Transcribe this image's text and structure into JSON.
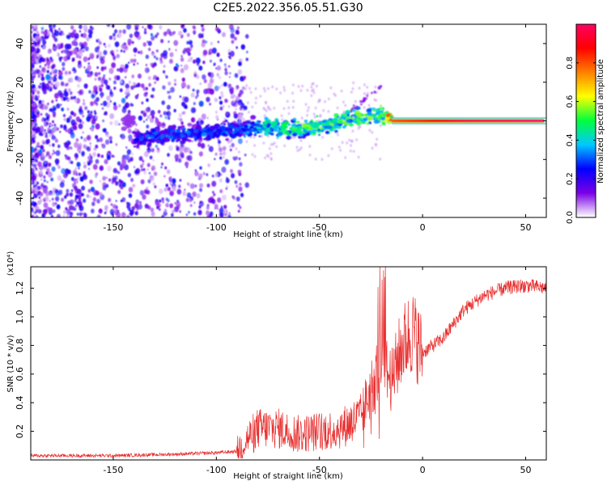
{
  "figure": {
    "title": "C2E5.2022.356.05.51.G30"
  },
  "chart_data": [
    {
      "type": "heatmap",
      "xlabel": "Height of straight line (km)",
      "ylabel": "Frequency (Hz)",
      "xlim": [
        -190,
        60
      ],
      "ylim": [
        -50,
        50
      ],
      "xticks": [
        -150,
        -100,
        -50,
        0,
        50
      ],
      "yticks": [
        -40,
        -20,
        0,
        20,
        40
      ],
      "colorbar": {
        "label": "Normalized spectral amplitude",
        "range": [
          0,
          1
        ],
        "ticks": [
          0.0,
          0.2,
          0.4,
          0.6,
          0.8
        ],
        "colors": [
          "#ffffff",
          "#7a00e6",
          "#0000ff",
          "#00c8ff",
          "#00ff3c",
          "#ffff00",
          "#ff8000",
          "#ff0000",
          "#ff0066"
        ]
      },
      "description_points": [
        {
          "x": -140,
          "y": -10,
          "v": 0.25
        },
        {
          "x": -130,
          "y": -8,
          "v": 0.3
        },
        {
          "x": -90,
          "y": -5,
          "v": 0.3
        },
        {
          "x": -75,
          "y": -3,
          "v": 0.45
        },
        {
          "x": -60,
          "y": -4,
          "v": 0.5
        },
        {
          "x": -45,
          "y": -2,
          "v": 0.5
        },
        {
          "x": -35,
          "y": 2,
          "v": 0.5
        },
        {
          "x": -20,
          "y": 3,
          "v": 0.55
        },
        {
          "x": -15,
          "y": 0,
          "v": 0.8
        },
        {
          "x": 0,
          "y": 0,
          "v": 0.85
        },
        {
          "x": 20,
          "y": 0,
          "v": 0.95
        },
        {
          "x": 40,
          "y": 0,
          "v": 0.97
        },
        {
          "x": 58,
          "y": 0,
          "v": 1.0
        }
      ],
      "grid": false,
      "legend": "none"
    },
    {
      "type": "line",
      "xlabel": "Height of straight line (km)",
      "ylabel": "SNR (10 * v/v)",
      "yscale_label": "(x10⁴)",
      "xlim": [
        -190,
        60
      ],
      "ylim": [
        0,
        1.35
      ],
      "xticks": [
        -150,
        -100,
        -50,
        0,
        50
      ],
      "yticks": [
        0.2,
        0.4,
        0.6,
        0.8,
        1.0,
        1.2
      ],
      "color": "#e83030",
      "x": [
        -190,
        -150,
        -120,
        -100,
        -90,
        -85,
        -80,
        -70,
        -60,
        -50,
        -40,
        -30,
        -25,
        -20,
        -15,
        -10,
        -5,
        0,
        5,
        10,
        15,
        20,
        30,
        40,
        50,
        60
      ],
      "y": [
        0.03,
        0.03,
        0.04,
        0.05,
        0.06,
        0.15,
        0.22,
        0.22,
        0.18,
        0.2,
        0.22,
        0.3,
        0.5,
        0.7,
        0.55,
        0.8,
        0.9,
        0.75,
        0.8,
        0.85,
        0.95,
        1.05,
        1.15,
        1.2,
        1.22,
        1.2
      ],
      "grid": false,
      "legend": "none"
    }
  ]
}
